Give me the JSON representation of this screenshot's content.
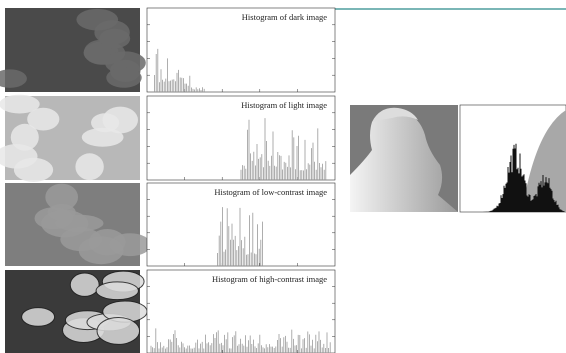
{
  "histograms": [
    {
      "title": "Histogram of dark image"
    },
    {
      "title": "Histogram of light image"
    },
    {
      "title": "Histogram of low-contrast image"
    },
    {
      "title": "Histogram of high-contrast image"
    }
  ]
}
